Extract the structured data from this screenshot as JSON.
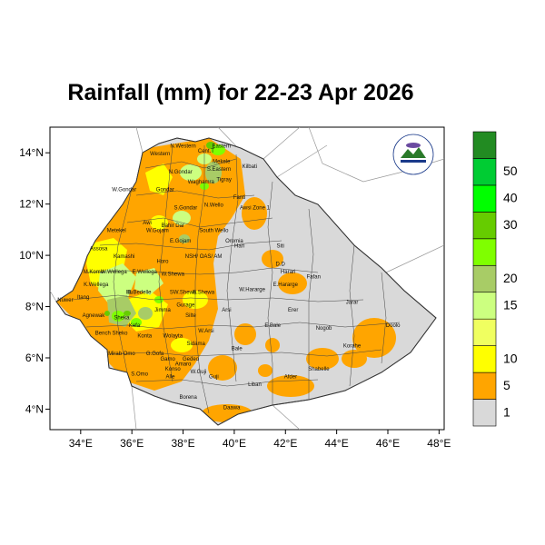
{
  "title": "Rainfall (mm) for 22-23 Apr 2026",
  "latitude_ticks": [
    {
      "value": 14,
      "label": "14°N"
    },
    {
      "value": 12,
      "label": "12°N"
    },
    {
      "value": 10,
      "label": "10°N"
    },
    {
      "value": 8,
      "label": "8°N"
    },
    {
      "value": 6,
      "label": "6°N"
    },
    {
      "value": 4,
      "label": "4°N"
    }
  ],
  "longitude_ticks": [
    {
      "value": 34,
      "label": "34°E"
    },
    {
      "value": 36,
      "label": "36°E"
    },
    {
      "value": 38,
      "label": "38°E"
    },
    {
      "value": 40,
      "label": "40°E"
    },
    {
      "value": 42,
      "label": "42°E"
    },
    {
      "value": 44,
      "label": "44°E"
    },
    {
      "value": 46,
      "label": "46°E"
    },
    {
      "value": 48,
      "label": "48°E"
    }
  ],
  "colorbar": {
    "colors": [
      "#d9d9d9",
      "#ffa500",
      "#ffff00",
      "#f0ff60",
      "#ccff80",
      "#a8cc66",
      "#7fff00",
      "#66cc00",
      "#00ff00",
      "#00cc33",
      "#228b22"
    ],
    "labels": [
      "1",
      "5",
      "10",
      "15",
      "20",
      "30",
      "40",
      "50"
    ]
  },
  "regions": [
    {
      "name": "Western",
      "lon": 37.1,
      "lat": 13.9
    },
    {
      "name": "N.Western",
      "lon": 38.0,
      "lat": 14.2
    },
    {
      "name": "Cent.T",
      "lon": 38.9,
      "lat": 14.0
    },
    {
      "name": "Eastern",
      "lon": 39.5,
      "lat": 14.2
    },
    {
      "name": "Mekele",
      "lon": 39.5,
      "lat": 13.6
    },
    {
      "name": "S.Eastern",
      "lon": 39.4,
      "lat": 13.3
    },
    {
      "name": "N.Gondar",
      "lon": 37.9,
      "lat": 13.2
    },
    {
      "name": "Kilbati",
      "lon": 40.6,
      "lat": 13.4
    },
    {
      "name": "Waghamra",
      "lon": 38.7,
      "lat": 12.8
    },
    {
      "name": "Tigray",
      "lon": 39.6,
      "lat": 12.9
    },
    {
      "name": "W.Gondar",
      "lon": 35.7,
      "lat": 12.5
    },
    {
      "name": "Gondar",
      "lon": 37.3,
      "lat": 12.5
    },
    {
      "name": "Fanti",
      "lon": 40.2,
      "lat": 12.2
    },
    {
      "name": "S.Gondar",
      "lon": 38.1,
      "lat": 11.8
    },
    {
      "name": "N.Wello",
      "lon": 39.2,
      "lat": 11.9
    },
    {
      "name": "Awsi Zone 1",
      "lon": 40.8,
      "lat": 11.8
    },
    {
      "name": "Awi",
      "lon": 36.6,
      "lat": 11.2
    },
    {
      "name": "Metekel",
      "lon": 35.4,
      "lat": 10.9
    },
    {
      "name": "W.Gojam",
      "lon": 37.0,
      "lat": 10.9
    },
    {
      "name": "Bahir Dar",
      "lon": 37.6,
      "lat": 11.1
    },
    {
      "name": "South Wello",
      "lon": 39.2,
      "lat": 10.9
    },
    {
      "name": "Oromia",
      "lon": 40.0,
      "lat": 10.5
    },
    {
      "name": "E.Gojam",
      "lon": 37.9,
      "lat": 10.5
    },
    {
      "name": "Hari",
      "lon": 40.2,
      "lat": 10.3
    },
    {
      "name": "Siti",
      "lon": 41.8,
      "lat": 10.3
    },
    {
      "name": "Assosa",
      "lon": 34.7,
      "lat": 10.2
    },
    {
      "name": "Kamashi",
      "lon": 35.7,
      "lat": 9.9
    },
    {
      "name": "NSH/ OAS/ AM",
      "lon": 38.8,
      "lat": 9.9
    },
    {
      "name": "Horo",
      "lon": 37.2,
      "lat": 9.7
    },
    {
      "name": "D.D",
      "lon": 41.8,
      "lat": 9.6
    },
    {
      "name": "Harari",
      "lon": 42.1,
      "lat": 9.3
    },
    {
      "name": "Fafan",
      "lon": 43.1,
      "lat": 9.1
    },
    {
      "name": "M.Komo",
      "lon": 34.5,
      "lat": 9.3
    },
    {
      "name": "W.Wellega",
      "lon": 35.3,
      "lat": 9.3
    },
    {
      "name": "E.Wellega",
      "lon": 36.5,
      "lat": 9.3
    },
    {
      "name": "W.Shewa",
      "lon": 37.6,
      "lat": 9.2
    },
    {
      "name": "K.Wellega",
      "lon": 34.6,
      "lat": 8.8
    },
    {
      "name": "W.Hararge",
      "lon": 40.7,
      "lat": 8.6
    },
    {
      "name": "E.Hararge",
      "lon": 42.0,
      "lat": 8.8
    },
    {
      "name": "Illu",
      "lon": 35.9,
      "lat": 8.5
    },
    {
      "name": "B.Bedelle",
      "lon": 36.3,
      "lat": 8.5
    },
    {
      "name": "SW.Shewa",
      "lon": 38.0,
      "lat": 8.5
    },
    {
      "name": "E.Shewa",
      "lon": 38.8,
      "lat": 8.5
    },
    {
      "name": "Itang",
      "lon": 34.1,
      "lat": 8.3
    },
    {
      "name": "Nuwer",
      "lon": 33.4,
      "lat": 8.2
    },
    {
      "name": "Jarar",
      "lon": 44.6,
      "lat": 8.1
    },
    {
      "name": "Gurage",
      "lon": 38.1,
      "lat": 8.0
    },
    {
      "name": "Erer",
      "lon": 42.3,
      "lat": 7.8
    },
    {
      "name": "Jimma",
      "lon": 37.2,
      "lat": 7.8
    },
    {
      "name": "Arsi",
      "lon": 39.7,
      "lat": 7.8
    },
    {
      "name": "Agnewak",
      "lon": 34.5,
      "lat": 7.6
    },
    {
      "name": "Silte",
      "lon": 38.3,
      "lat": 7.6
    },
    {
      "name": "Sheka",
      "lon": 35.6,
      "lat": 7.5
    },
    {
      "name": "Kefa",
      "lon": 36.1,
      "lat": 7.2
    },
    {
      "name": "E.Bale",
      "lon": 41.5,
      "lat": 7.2
    },
    {
      "name": "Nogob",
      "lon": 43.5,
      "lat": 7.1
    },
    {
      "name": "Doolo",
      "lon": 46.2,
      "lat": 7.2
    },
    {
      "name": "Bench Sheko",
      "lon": 35.2,
      "lat": 6.9
    },
    {
      "name": "Konta",
      "lon": 36.5,
      "lat": 6.8
    },
    {
      "name": "W.Arsi",
      "lon": 38.9,
      "lat": 7.0
    },
    {
      "name": "Wolayta",
      "lon": 37.6,
      "lat": 6.8
    },
    {
      "name": "Sidama",
      "lon": 38.5,
      "lat": 6.5
    },
    {
      "name": "Korahe",
      "lon": 44.6,
      "lat": 6.4
    },
    {
      "name": "Bale",
      "lon": 40.1,
      "lat": 6.3
    },
    {
      "name": "G.Gofa",
      "lon": 36.9,
      "lat": 6.1
    },
    {
      "name": "Mirab Omo",
      "lon": 35.6,
      "lat": 6.1
    },
    {
      "name": "Gamo",
      "lon": 37.4,
      "lat": 5.9
    },
    {
      "name": "Gedeo",
      "lon": 38.3,
      "lat": 5.9
    },
    {
      "name": "Shabelle",
      "lon": 43.3,
      "lat": 5.5
    },
    {
      "name": "Amaro",
      "lon": 38.0,
      "lat": 5.7
    },
    {
      "name": "W.Guji",
      "lon": 38.6,
      "lat": 5.4
    },
    {
      "name": "Guji",
      "lon": 39.2,
      "lat": 5.2
    },
    {
      "name": "S.Omo",
      "lon": 36.3,
      "lat": 5.3
    },
    {
      "name": "Konso",
      "lon": 37.6,
      "lat": 5.5
    },
    {
      "name": "Alle",
      "lon": 37.5,
      "lat": 5.2
    },
    {
      "name": "Afder",
      "lon": 42.2,
      "lat": 5.2
    },
    {
      "name": "Liban",
      "lon": 40.8,
      "lat": 4.9
    },
    {
      "name": "Borena",
      "lon": 38.2,
      "lat": 4.4
    },
    {
      "name": "Daawa",
      "lon": 39.9,
      "lat": 4.0
    }
  ]
}
